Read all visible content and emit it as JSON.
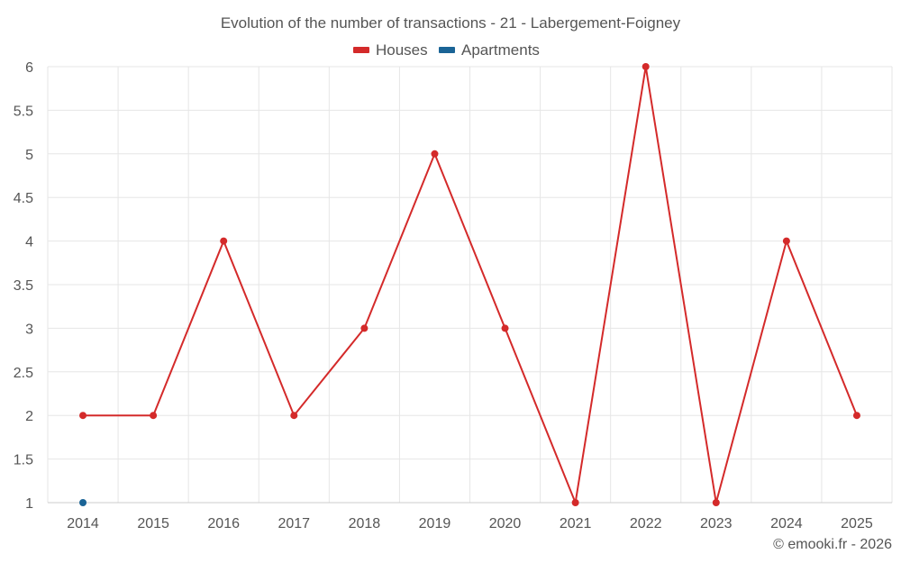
{
  "chart_data": {
    "type": "line",
    "title": "Evolution of the number of transactions - 21 - Labergement-Foigney",
    "categories": [
      "2014",
      "2015",
      "2016",
      "2017",
      "2018",
      "2019",
      "2020",
      "2021",
      "2022",
      "2023",
      "2024",
      "2025"
    ],
    "yticks": [
      "1",
      "1.5",
      "2",
      "2.5",
      "3",
      "3.5",
      "4",
      "4.5",
      "5",
      "5.5",
      "6"
    ],
    "ylim": [
      1,
      6
    ],
    "xlabel": "",
    "ylabel": "",
    "grid": true,
    "legend_position": "top-center",
    "series": [
      {
        "name": "Houses",
        "color": "#d42a2a",
        "values": [
          2,
          2,
          4,
          2,
          3,
          5,
          3,
          1,
          6,
          1,
          4,
          2
        ]
      },
      {
        "name": "Apartments",
        "color": "#1a6496",
        "values": [
          1,
          null,
          null,
          null,
          null,
          null,
          null,
          null,
          null,
          null,
          null,
          null
        ]
      }
    ]
  },
  "credit": "© emooki.fr - 2026"
}
